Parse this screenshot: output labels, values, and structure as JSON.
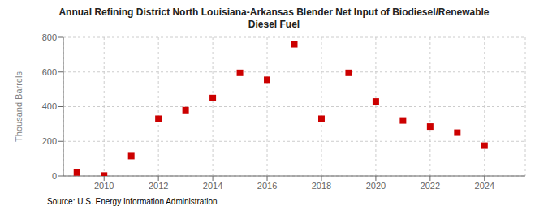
{
  "chart_data": {
    "type": "scatter",
    "title": "Annual Refining District North Louisiana-Arkansas Blender Net Input of Biodiesel/Renewable\nDiesel Fuel",
    "ylabel": "Thousand Barrels",
    "source": "Source: U.S. Energy Information Administration",
    "x": [
      2009,
      2010,
      2011,
      2012,
      2013,
      2014,
      2015,
      2016,
      2017,
      2018,
      2019,
      2020,
      2021,
      2022,
      2023,
      2024
    ],
    "values": [
      20,
      3,
      115,
      330,
      380,
      450,
      595,
      555,
      760,
      330,
      595,
      430,
      320,
      285,
      250,
      175
    ],
    "color": "#cc0000",
    "marker": "square",
    "xlim": [
      2008.5,
      2025.5
    ],
    "xticks": [
      2010,
      2012,
      2014,
      2016,
      2018,
      2020,
      2022,
      2024
    ],
    "ylim": [
      0,
      800
    ],
    "yticks": [
      0,
      200,
      400,
      600,
      800
    ],
    "grid": true
  }
}
